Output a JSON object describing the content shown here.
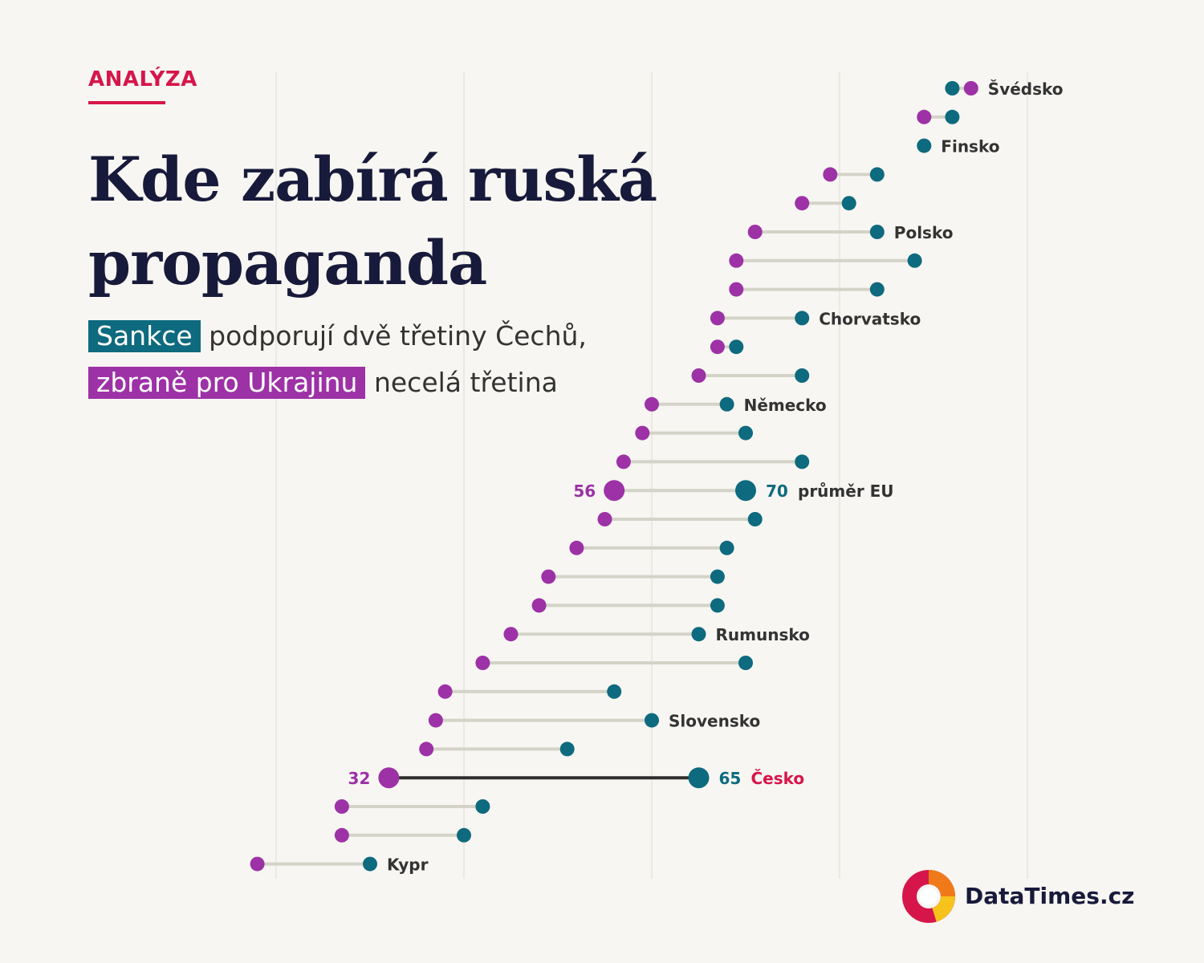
{
  "header": {
    "kicker": "ANALÝZA",
    "title": "Kde zabírá ruská propaganda",
    "subtitle_line1_highlight": "Sankce",
    "subtitle_line1_rest": "podporují dvě třetiny Čechů,",
    "subtitle_line2_highlight": "zbraně pro Ukrajinu",
    "subtitle_line2_rest": "necelá třetina"
  },
  "colors": {
    "sanctions": "#0e6a7e",
    "weapons": "#9d31a6",
    "accent": "#d6164a",
    "connector": "#d4d3c8",
    "highlight_connector": "#2d2d2d",
    "grid": "#dddcd2"
  },
  "chart_data": {
    "type": "dumbbell",
    "series": [
      {
        "name": "Sankce",
        "key": "sanctions"
      },
      {
        "name": "zbraně pro Ukrajinu",
        "key": "weapons"
      }
    ],
    "xlim": [
      0,
      100
    ],
    "gridlines": [
      20,
      40,
      60,
      80,
      100
    ],
    "rows": [
      {
        "label": "Švédsko",
        "sanctions": 92,
        "weapons": 94
      },
      {
        "label": "",
        "sanctions": 92,
        "weapons": 89
      },
      {
        "label": "Finsko",
        "sanctions": 89,
        "weapons": null
      },
      {
        "label": "",
        "sanctions": 84,
        "weapons": 79
      },
      {
        "label": "",
        "sanctions": 81,
        "weapons": 76
      },
      {
        "label": "Polsko",
        "sanctions": 84,
        "weapons": 71
      },
      {
        "label": "",
        "sanctions": 88,
        "weapons": 69
      },
      {
        "label": "",
        "sanctions": 84,
        "weapons": 69
      },
      {
        "label": "Chorvatsko",
        "sanctions": 76,
        "weapons": 67
      },
      {
        "label": "",
        "sanctions": 69,
        "weapons": 67
      },
      {
        "label": "",
        "sanctions": 76,
        "weapons": 65
      },
      {
        "label": "Německo",
        "sanctions": 68,
        "weapons": 60
      },
      {
        "label": "",
        "sanctions": 70,
        "weapons": 59
      },
      {
        "label": "",
        "sanctions": 76,
        "weapons": 57
      },
      {
        "label": "průměr EU",
        "sanctions": 70,
        "weapons": 56,
        "highlight": "eu",
        "show_values": true
      },
      {
        "label": "",
        "sanctions": 71,
        "weapons": 55
      },
      {
        "label": "",
        "sanctions": 68,
        "weapons": 52
      },
      {
        "label": "",
        "sanctions": 67,
        "weapons": 49
      },
      {
        "label": "",
        "sanctions": 67,
        "weapons": 48
      },
      {
        "label": "Rumunsko",
        "sanctions": 65,
        "weapons": 45
      },
      {
        "label": "",
        "sanctions": 70,
        "weapons": 42
      },
      {
        "label": "",
        "sanctions": 56,
        "weapons": 38
      },
      {
        "label": "Slovensko",
        "sanctions": 60,
        "weapons": 37
      },
      {
        "label": "",
        "sanctions": 51,
        "weapons": 36
      },
      {
        "label": "Česko",
        "sanctions": 65,
        "weapons": 32,
        "highlight": "cz",
        "show_values": true
      },
      {
        "label": "",
        "sanctions": 42,
        "weapons": 27
      },
      {
        "label": "",
        "sanctions": 40,
        "weapons": 27
      },
      {
        "label": "Kypr",
        "sanctions": 30,
        "weapons": 18
      }
    ]
  },
  "footer": {
    "brand": "DataTimes.cz"
  }
}
